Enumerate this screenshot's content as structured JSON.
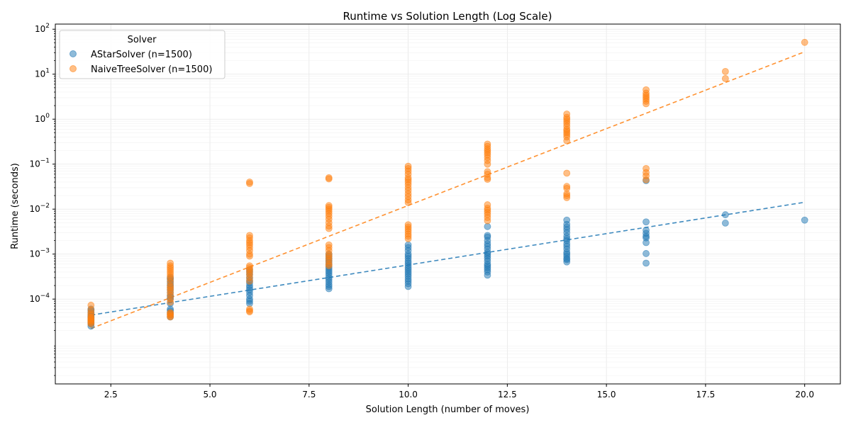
{
  "chart_data": {
    "type": "scatter",
    "title": "Runtime vs Solution Length (Log Scale)",
    "xlabel": "Solution Length (number of moves)",
    "ylabel": "Runtime (seconds)",
    "xlim": [
      1.1,
      20.9
    ],
    "ylim": [
      1.3e-06,
      130
    ],
    "yscale": "log",
    "grid": true,
    "x_ticks": [
      {
        "value": 2.5,
        "label": "2.5"
      },
      {
        "value": 5.0,
        "label": "5.0"
      },
      {
        "value": 7.5,
        "label": "7.5"
      },
      {
        "value": 10.0,
        "label": "10.0"
      },
      {
        "value": 12.5,
        "label": "12.5"
      },
      {
        "value": 15.0,
        "label": "15.0"
      },
      {
        "value": 17.5,
        "label": "17.5"
      },
      {
        "value": 20.0,
        "label": "20.0"
      }
    ],
    "y_ticks": [
      {
        "value": 0.0001,
        "base": "10",
        "exp": "−4"
      },
      {
        "value": 0.001,
        "base": "10",
        "exp": "−3"
      },
      {
        "value": 0.01,
        "base": "10",
        "exp": "−2"
      },
      {
        "value": 0.1,
        "base": "10",
        "exp": "−1"
      },
      {
        "value": 1,
        "base": "10",
        "exp": "0"
      },
      {
        "value": 10,
        "base": "10",
        "exp": "1"
      },
      {
        "value": 100,
        "base": "10",
        "exp": "2"
      }
    ],
    "legend": {
      "title": "Solver",
      "position": "top-left"
    },
    "series": [
      {
        "name": "AStarSolver (n=1500)",
        "color": "#1f77b4",
        "trend": {
          "x": [
            2,
            20
          ],
          "y": [
            4.4e-05,
            0.0142
          ]
        },
        "points": [
          {
            "x": 2,
            "y": [
              2.5e-05,
              2.8e-05,
              3e-05,
              3.2e-05,
              3.4e-05,
              3.6e-05,
              3.8e-05,
              4e-05,
              4.2e-05,
              4.5e-05,
              5e-05,
              5.5e-05,
              6e-05
            ]
          },
          {
            "x": 4,
            "y": [
              4e-05,
              4.5e-05,
              5e-05,
              5.5e-05,
              6e-05,
              8e-05,
              0.0001,
              0.00011,
              0.00012,
              0.00014,
              0.00016,
              0.00018,
              0.0002,
              0.00022,
              0.00025,
              0.00028,
              0.0003
            ]
          },
          {
            "x": 6,
            "y": [
              8e-05,
              9e-05,
              0.0001,
              0.00012,
              0.00014,
              0.00016,
              0.00018,
              0.0002,
              0.00023,
              0.00026,
              0.0003,
              0.00035,
              0.0004,
              0.00045
            ]
          },
          {
            "x": 8,
            "y": [
              0.00017,
              0.00019,
              0.00021,
              0.00024,
              0.00027,
              0.0003,
              0.00034,
              0.00038,
              0.00042,
              0.00047,
              0.00052,
              0.00058,
              0.00065,
              0.00072,
              0.0008,
              0.0009,
              0.001
            ]
          },
          {
            "x": 10,
            "y": [
              0.00019,
              0.00022,
              0.00025,
              0.00028,
              0.00032,
              0.00036,
              0.0004,
              0.00045,
              0.0005,
              0.00056,
              0.00063,
              0.0007,
              0.0008,
              0.0009,
              0.001,
              0.0012,
              0.0014,
              0.0016
            ]
          },
          {
            "x": 12,
            "y": [
              0.00034,
              0.0004,
              0.00045,
              0.0005,
              0.00055,
              0.0006,
              0.0007,
              0.0008,
              0.0009,
              0.001,
              0.0011,
              0.0013,
              0.0015,
              0.0017,
              0.002,
              0.0024,
              0.0026,
              0.0041
            ]
          },
          {
            "x": 14,
            "y": [
              0.00067,
              0.00075,
              0.0008,
              0.0009,
              0.001,
              0.0011,
              0.0013,
              0.0015,
              0.0017,
              0.002,
              0.0022,
              0.0025,
              0.003,
              0.0035,
              0.004,
              0.0046,
              0.0057
            ]
          },
          {
            "x": 16,
            "y": [
              0.00063,
              0.00103,
              0.0018,
              0.0023,
              0.0025,
              0.0029,
              0.0034,
              0.0052,
              0.043
            ]
          },
          {
            "x": 18,
            "y": [
              0.0049,
              0.0075
            ]
          },
          {
            "x": 20,
            "y": [
              0.0057
            ]
          }
        ]
      },
      {
        "name": "NaiveTreeSolver (n=1500)",
        "color": "#ff7f0e",
        "trend": {
          "x": [
            2,
            20
          ],
          "y": [
            2.22e-05,
            31.5
          ]
        },
        "points": [
          {
            "x": 2,
            "y": [
              2.8e-05,
              3e-05,
              3.2e-05,
              3.4e-05,
              3.6e-05,
              3.8e-05,
              4e-05,
              4.5e-05,
              5e-05,
              5.8e-05,
              7.3e-05
            ]
          },
          {
            "x": 4,
            "y": [
              4e-05,
              4.2e-05,
              4.5e-05,
              4.8e-05,
              5e-05,
              8.5e-05,
              0.0001,
              0.00012,
              0.00014,
              0.00016,
              0.00018,
              0.0002,
              0.00024,
              0.00028,
              0.00032,
              0.00036,
              0.0004,
              0.00045,
              0.0005,
              0.00055,
              0.00063
            ]
          },
          {
            "x": 6,
            "y": [
              5.2e-05,
              5.5e-05,
              6e-05,
              0.00025,
              0.0003,
              0.00035,
              0.0004,
              0.00045,
              0.0005,
              0.00055,
              0.0009,
              0.001,
              0.0012,
              0.0014,
              0.0016,
              0.0018,
              0.002,
              0.0023,
              0.0026,
              0.037,
              0.04
            ]
          },
          {
            "x": 8,
            "y": [
              0.00055,
              0.0006,
              0.0007,
              0.0008,
              0.0009,
              0.001,
              0.0012,
              0.0014,
              0.0016,
              0.0037,
              0.0042,
              0.005,
              0.006,
              0.007,
              0.008,
              0.009,
              0.01,
              0.011,
              0.012,
              0.047,
              0.05
            ]
          },
          {
            "x": 10,
            "y": [
              0.0022,
              0.0025,
              0.0028,
              0.0032,
              0.0036,
              0.004,
              0.0045,
              0.014,
              0.016,
              0.019,
              0.022,
              0.026,
              0.03,
              0.035,
              0.04,
              0.045,
              0.05,
              0.06,
              0.07,
              0.08,
              0.09
            ]
          },
          {
            "x": 12,
            "y": [
              0.0055,
              0.0065,
              0.0075,
              0.0085,
              0.0095,
              0.0105,
              0.0125,
              0.046,
              0.05,
              0.06,
              0.068,
              0.1,
              0.12,
              0.14,
              0.16,
              0.18,
              0.2,
              0.22,
              0.25,
              0.28
            ]
          },
          {
            "x": 14,
            "y": [
              0.018,
              0.02,
              0.022,
              0.029,
              0.032,
              0.063,
              0.33,
              0.4,
              0.45,
              0.5,
              0.55,
              0.6,
              0.7,
              0.8,
              0.9,
              1.0,
              1.1,
              1.3
            ]
          },
          {
            "x": 16,
            "y": [
              0.045,
              0.055,
              0.065,
              0.08,
              2.2,
              2.5,
              2.8,
              3.1,
              3.4,
              3.8,
              4.5
            ]
          },
          {
            "x": 18,
            "y": [
              8.0,
              11.5
            ]
          },
          {
            "x": 20,
            "y": [
              51
            ]
          }
        ]
      }
    ]
  }
}
